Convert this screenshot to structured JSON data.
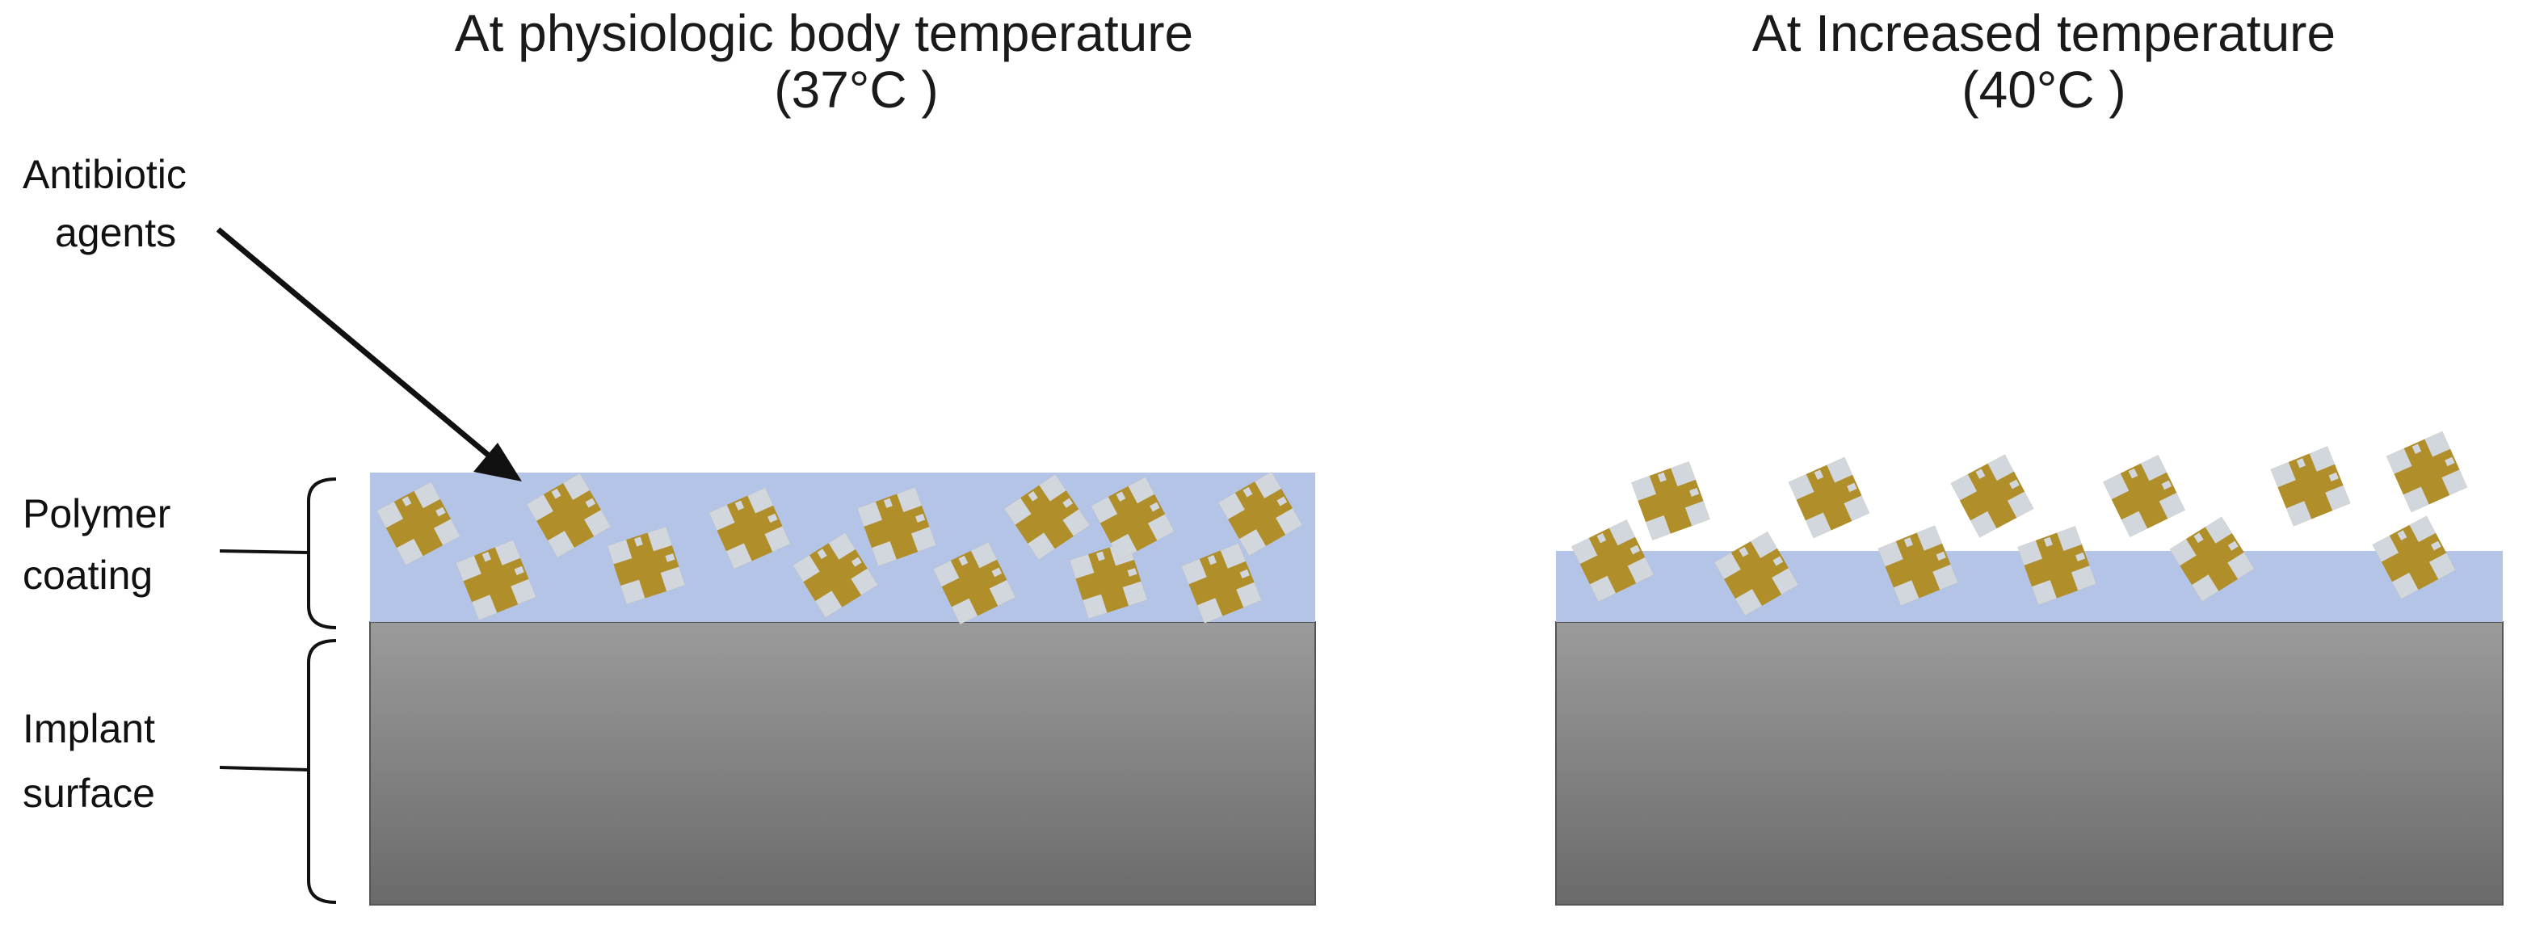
{
  "panels": {
    "left": {
      "title_line1": "At physiologic body temperature",
      "title_line2": "(37°C )"
    },
    "right": {
      "title_line1": "At Increased temperature",
      "title_line2": "(40°C )"
    }
  },
  "labels": {
    "antibiotic_line1": "Antibiotic",
    "antibiotic_line2": "agents",
    "polymer_line1": "Polymer",
    "polymer_line2": "coating",
    "implant_line1": "Implant",
    "implant_line2": "surface"
  },
  "colors": {
    "coating": "#b4c4e6",
    "implant_top": "#9b9b9b",
    "implant_bottom": "#6a6a6a",
    "agent": "#b08f2a",
    "agent_notch": "#d2d7de"
  }
}
